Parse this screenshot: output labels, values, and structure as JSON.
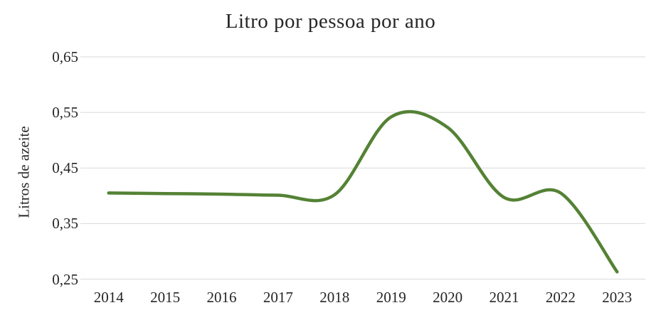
{
  "chart_data": {
    "type": "line",
    "title": "Litro por pessoa por ano",
    "xlabel": "",
    "ylabel": "Litros de azeite",
    "categories": [
      "2014",
      "2015",
      "2016",
      "2017",
      "2018",
      "2019",
      "2020",
      "2021",
      "2022",
      "2023"
    ],
    "values": [
      0.405,
      0.404,
      0.403,
      0.401,
      0.402,
      0.542,
      0.523,
      0.397,
      0.405,
      0.263
    ],
    "ylim": [
      0.25,
      0.65
    ],
    "yticks": [
      0.65,
      0.55,
      0.45,
      0.35,
      0.25
    ],
    "ytick_labels": [
      "0,65",
      "0,55",
      "0,45",
      "0,35",
      "0,25"
    ],
    "grid": "horizontal",
    "legend": "none",
    "smooth": true,
    "line_color": "#548235",
    "gridline_color": "#d9d9d9",
    "text_color": "#262626",
    "background_color": "#ffffff"
  }
}
